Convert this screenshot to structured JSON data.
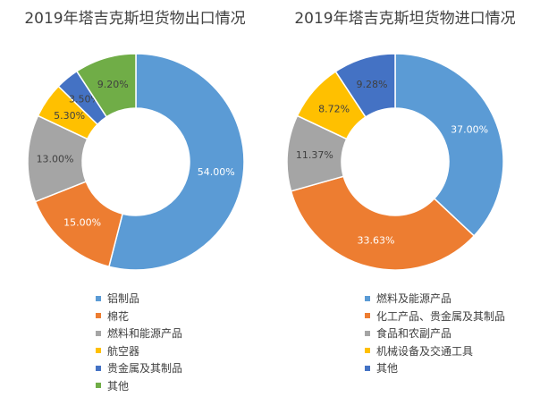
{
  "chart_data": [
    {
      "type": "pie",
      "title": "2019年塔吉克斯坦货物出口情况",
      "legend_position": "bottom",
      "categories": [
        "铝制品",
        "棉花",
        "燃料和能源产品",
        "航空器",
        "贵金属及其制品",
        "其他"
      ],
      "values": [
        54.0,
        15.0,
        13.0,
        5.3,
        3.5,
        9.2
      ],
      "labels": [
        "54.00%",
        "15.00%",
        "13.00%",
        "5.30%",
        "3.50%",
        "9.20%"
      ],
      "colors": [
        "#5B9BD5",
        "#ED7D31",
        "#A5A5A5",
        "#FFC000",
        "#4472C4",
        "#70AD47"
      ]
    },
    {
      "type": "pie",
      "title": "2019年塔吉克斯坦货物进口情况",
      "legend_position": "bottom",
      "categories": [
        "燃料及能源产品",
        "化工产品、贵金属及其制品",
        "食品和农副产品",
        "机械设备及交通工具",
        "其他"
      ],
      "values": [
        37.0,
        33.63,
        11.37,
        8.72,
        9.28
      ],
      "labels": [
        "37.00%",
        "33.63%",
        "11.37%",
        "8.72%",
        "9.28%"
      ],
      "colors": [
        "#5B9BD5",
        "#ED7D31",
        "#A5A5A5",
        "#FFC000",
        "#4472C4"
      ]
    }
  ]
}
